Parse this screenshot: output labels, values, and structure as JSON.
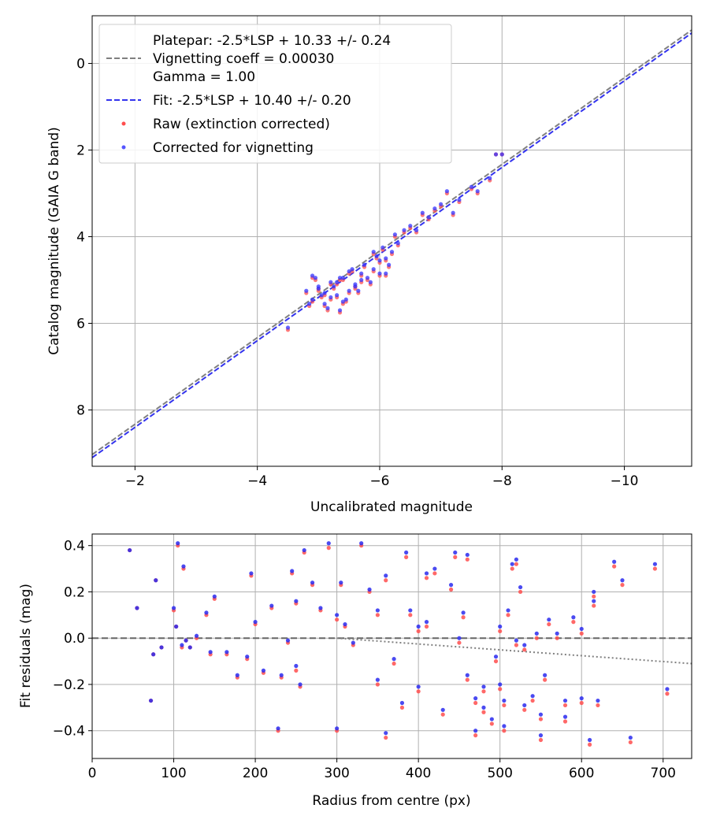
{
  "chart_data": [
    {
      "type": "scatter",
      "panel": "top",
      "xlabel": "Uncalibrated magnitude",
      "ylabel": "Catalog magnitude (GAIA G band)",
      "xlim": [
        -1.3,
        -11.1
      ],
      "ylim": [
        9.3,
        -1.1
      ],
      "x_inverted": true,
      "y_inverted": true,
      "xticks": [
        -2,
        -4,
        -6,
        -8,
        -10
      ],
      "xtick_labels": [
        "−2",
        "−4",
        "−6",
        "−8",
        "−10"
      ],
      "yticks": [
        0,
        2,
        4,
        6,
        8
      ],
      "ytick_labels": [
        "0",
        "2",
        "4",
        "6",
        "8"
      ],
      "grid": true,
      "legend_position": "top-left",
      "legend": [
        {
          "label_lines": [
            "Platepar: -2.5*LSP + 10.33 +/- 0.24",
            "Vignetting coeff = 0.00030",
            "Gamma = 1.00"
          ],
          "style": "dashed",
          "color": "#808080"
        },
        {
          "label_lines": [
            "Fit: -2.5*LSP + 10.40 +/- 0.20"
          ],
          "style": "dashed",
          "color": "#3333ee"
        },
        {
          "label_lines": [
            "Raw (extinction corrected)"
          ],
          "style": "marker",
          "color": "#ff4d4d"
        },
        {
          "label_lines": [
            "Corrected for vignetting"
          ],
          "style": "marker",
          "color": "#3333ff"
        }
      ],
      "lines": [
        {
          "name": "Platepar",
          "slope": 1,
          "intercept": 10.33,
          "color": "#808080"
        },
        {
          "name": "Fit",
          "slope": 1,
          "intercept": 10.4,
          "color": "#3333ee"
        }
      ],
      "series": [
        {
          "name": "Raw (extinction corrected)",
          "color": "#ff4d4d",
          "x": [
            -4.8,
            -4.9,
            -5.0,
            -5.1,
            -5.2,
            -5.3,
            -5.4,
            -5.5,
            -5.6,
            -5.7,
            -4.85,
            -4.95,
            -5.05,
            -5.15,
            -5.25,
            -5.35,
            -5.45,
            -5.55,
            -5.65,
            -5.75,
            -5.8,
            -5.9,
            -6.0,
            -6.1,
            -6.2,
            -5.85,
            -5.95,
            -6.05,
            -6.15,
            -6.25,
            -6.3,
            -6.4,
            -6.5,
            -6.6,
            -6.7,
            -6.8,
            -6.9,
            -7.0,
            -7.1,
            -7.2,
            -7.3,
            -7.5,
            -7.6,
            -7.8,
            -7.9,
            -8.0,
            -5.3,
            -4.9,
            -5.2,
            -5.6,
            -6.1,
            -5.4,
            -5.0,
            -5.5,
            -4.5,
            -6.0,
            -5.9,
            -5.1,
            -5.7,
            -5.35
          ],
          "y": [
            5.3,
            5.5,
            5.2,
            5.6,
            5.1,
            5.4,
            5.0,
            5.3,
            5.2,
            4.9,
            5.6,
            5.0,
            5.4,
            5.7,
            5.2,
            5.0,
            5.5,
            4.8,
            5.3,
            4.7,
            5.0,
            4.8,
            4.6,
            4.9,
            4.4,
            5.1,
            4.5,
            4.3,
            4.7,
            4.0,
            4.2,
            3.9,
            3.8,
            3.9,
            3.5,
            3.6,
            3.4,
            3.3,
            3.0,
            3.5,
            3.2,
            2.9,
            3.0,
            2.7,
            2.1,
            2.1,
            5.1,
            4.95,
            5.45,
            5.15,
            4.55,
            5.55,
            5.25,
            4.85,
            6.15,
            4.9,
            4.4,
            5.35,
            5.05,
            5.75
          ]
        },
        {
          "name": "Corrected for vignetting",
          "color": "#3333ff",
          "x": [
            -4.8,
            -4.9,
            -5.0,
            -5.1,
            -5.2,
            -5.3,
            -5.4,
            -5.5,
            -5.6,
            -5.7,
            -4.85,
            -4.95,
            -5.05,
            -5.15,
            -5.25,
            -5.35,
            -5.45,
            -5.55,
            -5.65,
            -5.75,
            -5.8,
            -5.9,
            -6.0,
            -6.1,
            -6.2,
            -5.85,
            -5.95,
            -6.05,
            -6.15,
            -6.25,
            -6.3,
            -6.4,
            -6.5,
            -6.6,
            -6.7,
            -6.8,
            -6.9,
            -7.0,
            -7.1,
            -7.2,
            -7.3,
            -7.5,
            -7.6,
            -7.8,
            -7.9,
            -8.0,
            -5.3,
            -4.9,
            -5.2,
            -5.6,
            -6.1,
            -5.4,
            -5.0,
            -5.5,
            -4.5,
            -6.0,
            -5.9,
            -5.1,
            -5.7,
            -5.35
          ],
          "y": [
            5.25,
            5.45,
            5.15,
            5.55,
            5.05,
            5.35,
            4.95,
            5.25,
            5.15,
            4.85,
            5.55,
            4.95,
            5.35,
            5.65,
            5.15,
            4.95,
            5.45,
            4.75,
            5.25,
            4.65,
            4.95,
            4.75,
            4.55,
            4.85,
            4.35,
            5.05,
            4.45,
            4.25,
            4.65,
            3.95,
            4.15,
            3.85,
            3.75,
            3.85,
            3.45,
            3.55,
            3.35,
            3.25,
            2.95,
            3.45,
            3.15,
            2.85,
            2.95,
            2.65,
            2.1,
            2.1,
            5.05,
            4.9,
            5.4,
            5.1,
            4.5,
            5.5,
            5.2,
            4.8,
            6.1,
            4.85,
            4.35,
            5.3,
            5.0,
            5.7
          ]
        }
      ]
    },
    {
      "type": "scatter",
      "panel": "bottom",
      "xlabel": "Radius from centre (px)",
      "ylabel": "Fit residuals (mag)",
      "xlim": [
        0,
        735
      ],
      "ylim": [
        -0.52,
        0.45
      ],
      "xticks": [
        0,
        100,
        200,
        300,
        400,
        500,
        600,
        700
      ],
      "xtick_labels": [
        "0",
        "100",
        "200",
        "300",
        "400",
        "500",
        "600",
        "700"
      ],
      "yticks": [
        -0.4,
        -0.2,
        0.0,
        0.2,
        0.4
      ],
      "ytick_labels": [
        "−0.4",
        "−0.2",
        "0.0",
        "0.2",
        "0.4"
      ],
      "grid": true,
      "lines": [
        {
          "name": "Zero",
          "style": "dashed",
          "color": "#666666",
          "points": [
            [
              0,
              0
            ],
            [
              735,
              0
            ]
          ]
        },
        {
          "name": "Vignetting trend",
          "style": "dotted",
          "color": "#808080",
          "points": [
            [
              300,
              0
            ],
            [
              735,
              -0.11
            ]
          ]
        }
      ],
      "series": [
        {
          "name": "Raw (extinction corrected)",
          "color": "#ff4d4d",
          "x": [
            46,
            55,
            72,
            75,
            78,
            85,
            100,
            103,
            105,
            110,
            112,
            115,
            120,
            128,
            140,
            145,
            150,
            165,
            178,
            190,
            195,
            200,
            210,
            220,
            228,
            232,
            240,
            245,
            250,
            255,
            260,
            270,
            280,
            290,
            300,
            305,
            310,
            320,
            330,
            340,
            350,
            360,
            370,
            380,
            385,
            390,
            400,
            410,
            420,
            430,
            440,
            445,
            455,
            460,
            470,
            480,
            490,
            495,
            500,
            505,
            510,
            515,
            520,
            525,
            530,
            540,
            545,
            550,
            555,
            560,
            570,
            580,
            590,
            600,
            610,
            615,
            620,
            640,
            650,
            660,
            690,
            705,
            360,
            470,
            520,
            300,
            400,
            500,
            600,
            250,
            350,
            450,
            550,
            480,
            530,
            580,
            615,
            505,
            460,
            410
          ],
          "y": [
            0.38,
            0.13,
            -0.27,
            -0.07,
            0.25,
            -0.04,
            0.12,
            0.05,
            0.4,
            -0.04,
            0.3,
            -0.01,
            -0.04,
            0.0,
            0.1,
            -0.07,
            0.17,
            -0.07,
            -0.17,
            -0.09,
            0.27,
            0.06,
            -0.15,
            0.13,
            -0.4,
            -0.17,
            -0.02,
            0.28,
            0.15,
            -0.21,
            0.37,
            0.23,
            0.12,
            0.39,
            -0.4,
            0.23,
            0.05,
            -0.03,
            0.4,
            0.2,
            0.1,
            0.25,
            -0.11,
            -0.3,
            0.35,
            0.1,
            -0.23,
            0.05,
            0.28,
            -0.33,
            0.21,
            0.35,
            0.09,
            -0.18,
            -0.28,
            -0.23,
            -0.37,
            -0.1,
            0.03,
            -0.4,
            0.1,
            0.3,
            -0.03,
            0.2,
            -0.31,
            -0.27,
            0.0,
            -0.44,
            -0.18,
            0.06,
            0.0,
            -0.29,
            0.07,
            0.02,
            -0.46,
            0.14,
            -0.29,
            0.31,
            0.23,
            -0.45,
            0.3,
            -0.24,
            -0.43,
            -0.42,
            0.32,
            0.08,
            0.03,
            -0.22,
            -0.28,
            -0.14,
            -0.2,
            -0.02,
            -0.35,
            -0.32,
            -0.05,
            -0.36,
            0.18,
            -0.29,
            0.34,
            0.26
          ],
          "approximate": true
        },
        {
          "name": "Corrected for vignetting",
          "color": "#2a2aee",
          "x": [
            46,
            55,
            72,
            75,
            78,
            85,
            100,
            103,
            105,
            110,
            112,
            115,
            120,
            128,
            140,
            145,
            150,
            165,
            178,
            190,
            195,
            200,
            210,
            220,
            228,
            232,
            240,
            245,
            250,
            255,
            260,
            270,
            280,
            290,
            300,
            305,
            310,
            320,
            330,
            340,
            350,
            360,
            370,
            380,
            385,
            390,
            400,
            410,
            420,
            430,
            440,
            445,
            455,
            460,
            470,
            480,
            490,
            495,
            500,
            505,
            510,
            515,
            520,
            525,
            530,
            540,
            545,
            550,
            555,
            560,
            570,
            580,
            590,
            600,
            610,
            615,
            620,
            640,
            650,
            660,
            690,
            705,
            360,
            470,
            520,
            300,
            400,
            500,
            600,
            250,
            350,
            450,
            550,
            480,
            530,
            580,
            615,
            505,
            460,
            410
          ],
          "y": [
            0.38,
            0.13,
            -0.27,
            -0.07,
            0.25,
            -0.04,
            0.13,
            0.05,
            0.41,
            -0.03,
            0.31,
            -0.01,
            -0.04,
            0.01,
            0.11,
            -0.06,
            0.18,
            -0.06,
            -0.16,
            -0.08,
            0.28,
            0.07,
            -0.14,
            0.14,
            -0.39,
            -0.16,
            -0.01,
            0.29,
            0.16,
            -0.2,
            0.38,
            0.24,
            0.13,
            0.41,
            -0.39,
            0.24,
            0.06,
            -0.02,
            0.41,
            0.21,
            0.12,
            0.27,
            -0.09,
            -0.28,
            0.37,
            0.12,
            -0.21,
            0.07,
            0.3,
            -0.31,
            0.23,
            0.37,
            0.11,
            -0.16,
            -0.26,
            -0.21,
            -0.35,
            -0.08,
            0.05,
            -0.38,
            0.12,
            0.32,
            -0.01,
            0.22,
            -0.29,
            -0.25,
            0.02,
            -0.42,
            -0.16,
            0.08,
            0.02,
            -0.27,
            0.09,
            0.04,
            -0.44,
            0.16,
            -0.27,
            0.33,
            0.25,
            -0.43,
            0.32,
            -0.22,
            -0.41,
            -0.4,
            0.34,
            0.1,
            0.05,
            -0.2,
            -0.26,
            -0.12,
            -0.18,
            0.0,
            -0.33,
            -0.3,
            -0.03,
            -0.34,
            0.2,
            -0.27,
            0.36,
            0.28
          ],
          "approximate": true
        }
      ]
    }
  ]
}
